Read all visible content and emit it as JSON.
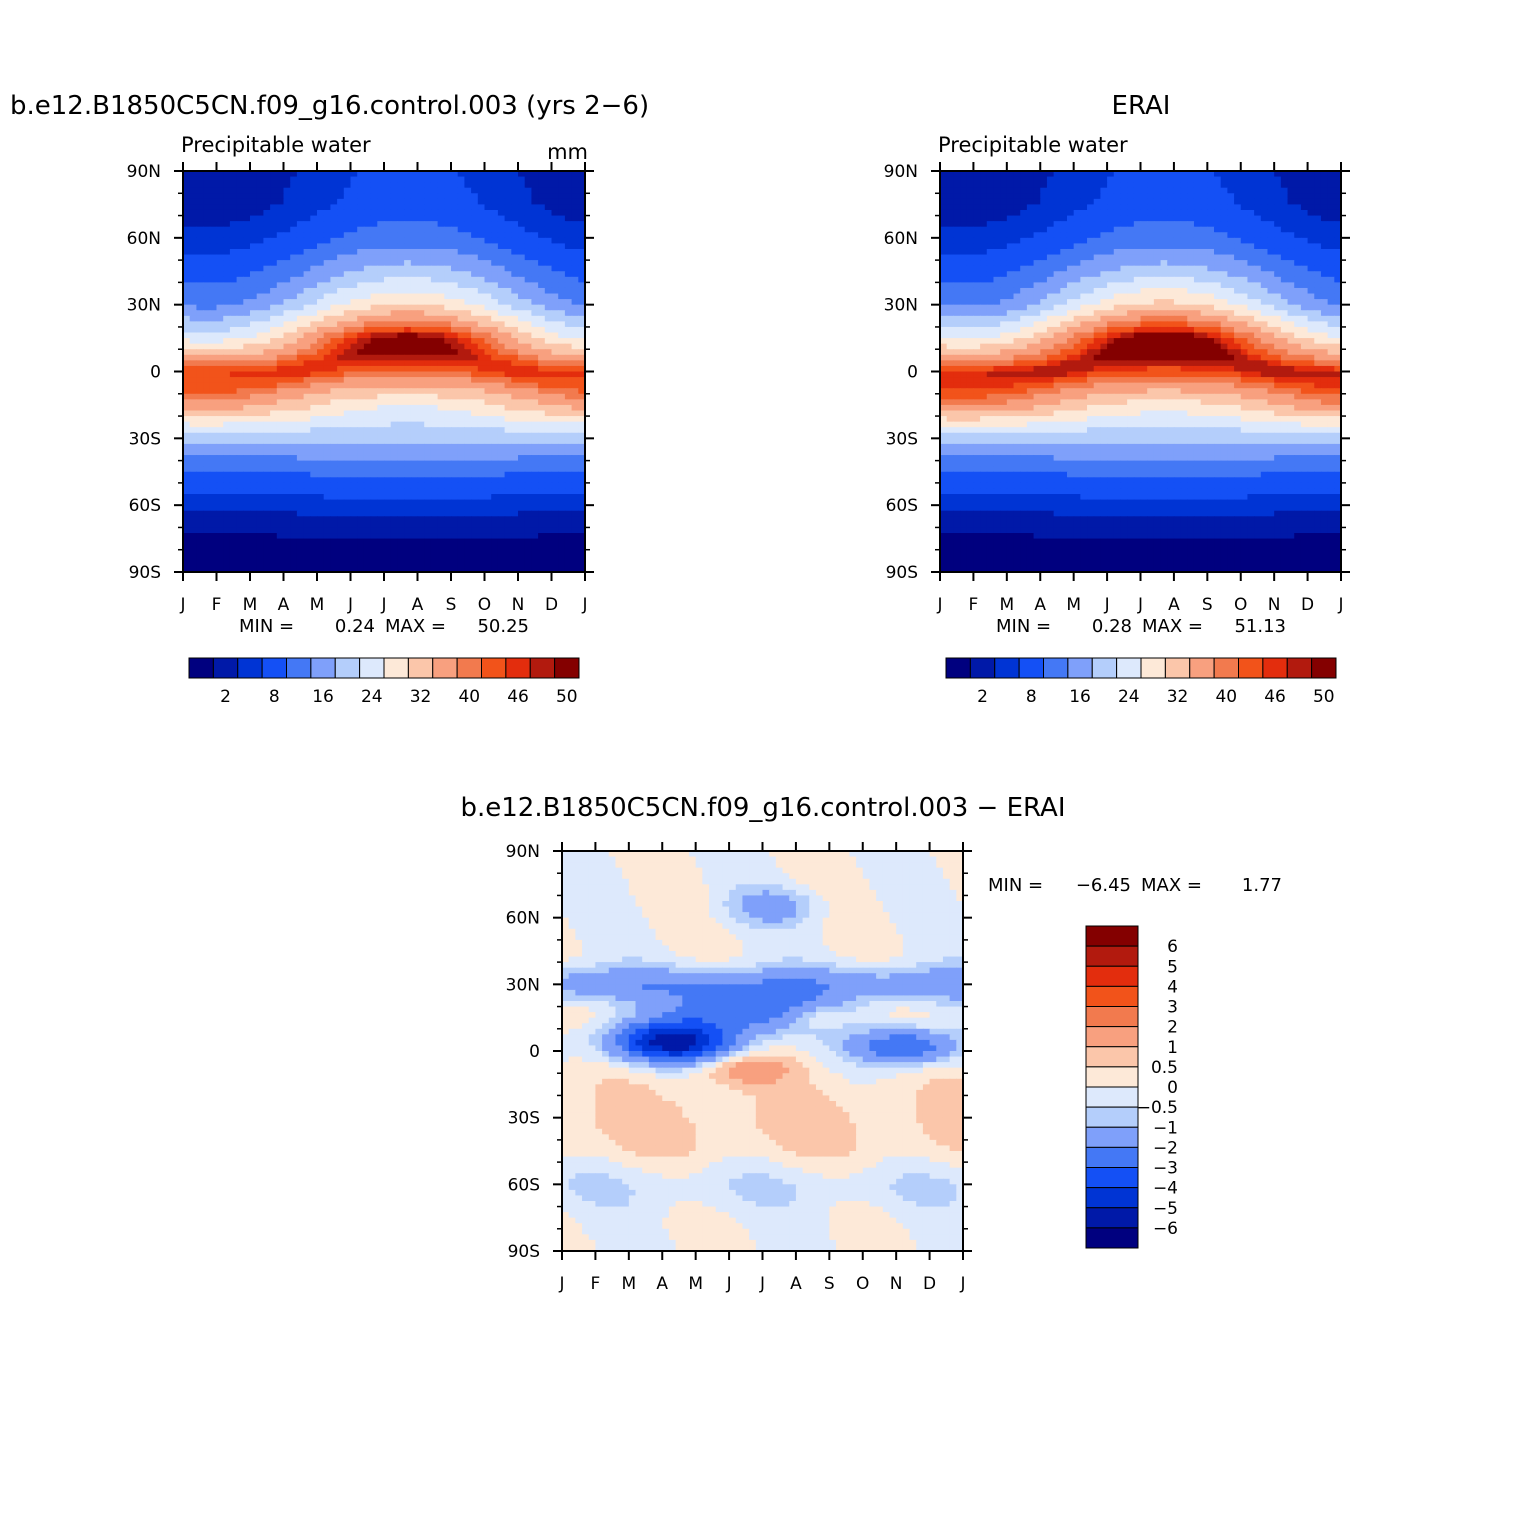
{
  "chart_data": [
    {
      "type": "heatmap",
      "title": "b.e12.B1850C5CN.f09_g16.control.003 (yrs 2−6)",
      "subtitle": "Precipitable water",
      "units": "mm",
      "x_tick_labels": [
        "J",
        "F",
        "M",
        "A",
        "M",
        "J",
        "J",
        "A",
        "S",
        "O",
        "N",
        "D",
        "J"
      ],
      "y_tick_labels": [
        "90N",
        "60N",
        "30N",
        "0",
        "30S",
        "60S",
        "90S"
      ],
      "y_ticks": [
        90,
        60,
        30,
        0,
        -30,
        -60,
        -90
      ],
      "ylim": [
        -90,
        90
      ],
      "xlim": [
        0,
        12
      ],
      "stats": {
        "min_label": "MIN =",
        "min": "0.24",
        "max_label": "MAX =",
        "max": "50.25"
      },
      "colorbar": {
        "orientation": "horizontal",
        "tick_labels": [
          "2",
          "8",
          "16",
          "24",
          "32",
          "40",
          "46",
          "50"
        ],
        "colors": [
          "#00007f",
          "#0019a8",
          "#0034d4",
          "#1450f5",
          "#4478f5",
          "#7fa0fa",
          "#b4cefb",
          "#dde9fc",
          "#fde9d8",
          "#fbc6aa",
          "#f8a07f",
          "#f27a4e",
          "#f2531a",
          "#e32d0d",
          "#b21a0e",
          "#840000"
        ]
      },
      "profile": {
        "lats": [
          -90,
          -75,
          -60,
          -45,
          -30,
          -15,
          0,
          15,
          30,
          45,
          60,
          75,
          90
        ],
        "jan": [
          0.5,
          1.5,
          5.5,
          12,
          21,
          38,
          44,
          26,
          15,
          10,
          6,
          3,
          2
        ],
        "jul": [
          1,
          2,
          7,
          13,
          21,
          28,
          42,
          49,
          32,
          22,
          14,
          10,
          9
        ],
        "peak_max": 50.25
      }
    },
    {
      "type": "heatmap",
      "title": "ERAI",
      "subtitle": "Precipitable water",
      "x_tick_labels": [
        "J",
        "F",
        "M",
        "A",
        "M",
        "J",
        "J",
        "A",
        "S",
        "O",
        "N",
        "D",
        "J"
      ],
      "y_tick_labels": [
        "90N",
        "60N",
        "30N",
        "0",
        "30S",
        "60S",
        "90S"
      ],
      "y_ticks": [
        90,
        60,
        30,
        0,
        -30,
        -60,
        -90
      ],
      "ylim": [
        -90,
        90
      ],
      "xlim": [
        0,
        12
      ],
      "stats": {
        "min_label": "MIN =",
        "min": "0.28",
        "max_label": "MAX =",
        "max": "51.13"
      },
      "colorbar": {
        "orientation": "horizontal",
        "tick_labels": [
          "2",
          "8",
          "16",
          "24",
          "32",
          "40",
          "46",
          "50"
        ],
        "colors": [
          "#00007f",
          "#0019a8",
          "#0034d4",
          "#1450f5",
          "#4478f5",
          "#7fa0fa",
          "#b4cefb",
          "#dde9fc",
          "#fde9d8",
          "#fbc6aa",
          "#f8a07f",
          "#f27a4e",
          "#f2531a",
          "#e32d0d",
          "#b21a0e",
          "#840000"
        ]
      },
      "profile": {
        "lats": [
          -90,
          -75,
          -60,
          -45,
          -30,
          -15,
          0,
          15,
          30,
          45,
          60,
          75,
          90
        ],
        "jan": [
          0.5,
          1.5,
          5.5,
          12,
          21,
          40,
          46,
          27,
          15,
          10,
          6,
          3,
          2
        ],
        "jul": [
          1,
          2,
          7,
          13,
          21,
          30,
          44,
          51,
          33,
          22,
          14,
          10,
          9
        ],
        "peak_max": 51.13
      }
    },
    {
      "type": "heatmap",
      "title": "b.e12.B1850C5CN.f09_g16.control.003 − ERAI",
      "x_tick_labels": [
        "J",
        "F",
        "M",
        "A",
        "M",
        "J",
        "J",
        "A",
        "S",
        "O",
        "N",
        "D",
        "J"
      ],
      "y_tick_labels": [
        "90N",
        "60N",
        "30N",
        "0",
        "30S",
        "60S",
        "90S"
      ],
      "y_ticks": [
        90,
        60,
        30,
        0,
        -30,
        -60,
        -90
      ],
      "ylim": [
        -90,
        90
      ],
      "xlim": [
        0,
        12
      ],
      "stats": {
        "min_label": "MIN =",
        "min": "−6.45",
        "max_label": "MAX =",
        "max": "1.77"
      },
      "colorbar": {
        "orientation": "vertical",
        "tick_labels": [
          "6",
          "5",
          "4",
          "3",
          "2",
          "1",
          "0.5",
          "0",
          "−0.5",
          "−1",
          "−2",
          "−3",
          "−4",
          "−5",
          "−6"
        ],
        "colors": [
          "#840000",
          "#b21a0e",
          "#e32d0d",
          "#f2531a",
          "#f27a4e",
          "#f8a07f",
          "#fbc6aa",
          "#fde9d8",
          "#dde9fc",
          "#b4cefb",
          "#7fa0fa",
          "#4478f5",
          "#1450f5",
          "#0034d4",
          "#0019a8",
          "#00007f"
        ]
      }
    }
  ]
}
